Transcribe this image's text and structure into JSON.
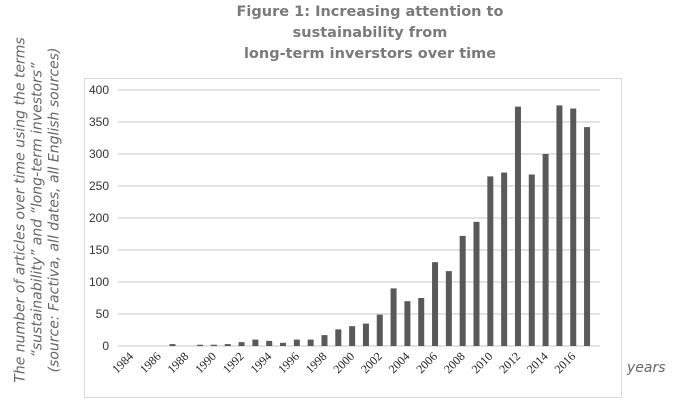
{
  "chart_data": {
    "type": "bar",
    "title_lines": [
      "Figure 1:  Increasing attention to sustainability from",
      "long-term inverstors over time"
    ],
    "ylabel_lines": [
      "The number of articles over time using the terms",
      "“sustainability” and “long-term investors”",
      "(source: Factiva, all dates, all English sources)"
    ],
    "xlabel": "years",
    "categories": [
      "1984",
      "1985",
      "1986",
      "1987",
      "1988",
      "1989",
      "1990",
      "1991",
      "1992",
      "1993",
      "1994",
      "1995",
      "1996",
      "1997",
      "1998",
      "1999",
      "2000",
      "2001",
      "2002",
      "2003",
      "2004",
      "2005",
      "2006",
      "2007",
      "2008",
      "2009",
      "2010",
      "2011",
      "2012",
      "2013",
      "2014",
      "2015",
      "2016",
      "2017"
    ],
    "tick_labels": [
      "1984",
      "1986",
      "1988",
      "1990",
      "1992",
      "1994",
      "1996",
      "1998",
      "2000",
      "2002",
      "2004",
      "2006",
      "2008",
      "2010",
      "2012",
      "2014",
      "2016"
    ],
    "values": [
      0,
      0,
      0,
      3,
      0,
      2,
      2,
      3,
      6,
      10,
      8,
      5,
      10,
      10,
      17,
      26,
      31,
      35,
      49,
      90,
      70,
      75,
      131,
      117,
      172,
      194,
      265,
      271,
      374,
      268,
      300,
      376,
      371,
      342
    ],
    "ylim": [
      0,
      400
    ],
    "yticks": [
      0,
      50,
      100,
      150,
      200,
      250,
      300,
      350,
      400
    ],
    "grid": true,
    "bar_color": "#595959"
  }
}
